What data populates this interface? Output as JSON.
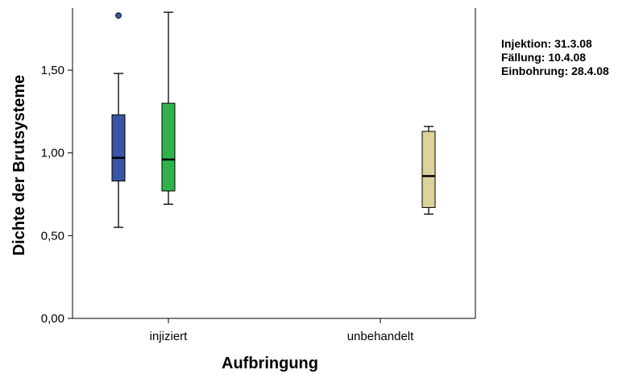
{
  "chart_data": {
    "type": "boxplot",
    "xlabel": "Aufbringung",
    "ylabel": "Dichte der Brutsysteme",
    "categories": [
      "injiziert",
      "unbehandelt"
    ],
    "ylim": [
      0,
      1.85
    ],
    "yticks": [
      {
        "value": 0,
        "label": "0,00"
      },
      {
        "value": 0.5,
        "label": "0,50"
      },
      {
        "value": 1.0,
        "label": "1,00"
      },
      {
        "value": 1.5,
        "label": "1,50"
      }
    ],
    "boxes": [
      {
        "category": "injiziert",
        "slot": 0,
        "color": "#3a55a5",
        "min": 0.55,
        "q1": 0.83,
        "median": 0.97,
        "q3": 1.23,
        "max": 1.48,
        "outliers": [
          1.83
        ]
      },
      {
        "category": "injiziert",
        "slot": 1,
        "color": "#2db34a",
        "min": 0.69,
        "q1": 0.77,
        "median": 0.96,
        "q3": 1.3,
        "max": 1.85,
        "outliers": []
      },
      {
        "category": "unbehandelt",
        "slot": 2,
        "color": "#dcd39a",
        "min": 0.63,
        "q1": 0.67,
        "median": 0.86,
        "q3": 1.13,
        "max": 1.16,
        "outliers": []
      }
    ]
  },
  "notes": [
    "Injektion: 31.3.08",
    "Fällung: 10.4.08",
    "Einbohrung: 28.4.08"
  ]
}
